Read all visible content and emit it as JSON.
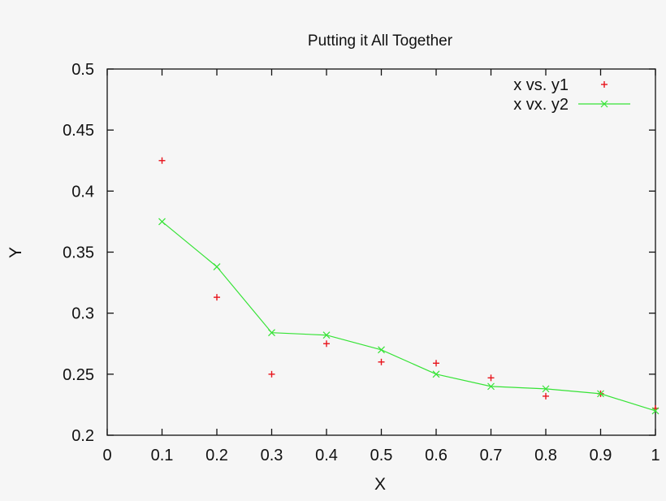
{
  "chart_data": {
    "type": "line",
    "title": "Putting it All Together",
    "xlabel": "X",
    "ylabel": "Y",
    "xlim": [
      0,
      1
    ],
    "ylim": [
      0.2,
      0.5
    ],
    "grid": false,
    "legend_position": "top-right",
    "x_ticks": [
      "0",
      "0.1",
      "0.2",
      "0.3",
      "0.4",
      "0.5",
      "0.6",
      "0.7",
      "0.8",
      "0.9",
      "1"
    ],
    "y_ticks": [
      "0.2",
      "0.25",
      "0.3",
      "0.35",
      "0.4",
      "0.45",
      "0.5"
    ],
    "x": [
      0.1,
      0.2,
      0.3,
      0.4,
      0.5,
      0.6,
      0.7,
      0.8,
      0.9,
      1.0
    ],
    "series": [
      {
        "name": "x vs. y1",
        "style": "points",
        "marker": "+",
        "color": "#e8141c",
        "values": [
          0.425,
          0.313,
          0.25,
          0.275,
          0.26,
          0.259,
          0.247,
          0.232,
          0.234,
          0.222
        ]
      },
      {
        "name": "x vx. y2",
        "style": "linespoints",
        "marker": "x",
        "color": "#36e336",
        "values": [
          0.375,
          0.338,
          0.284,
          0.282,
          0.27,
          0.25,
          0.24,
          0.238,
          0.234,
          0.22
        ]
      }
    ]
  }
}
